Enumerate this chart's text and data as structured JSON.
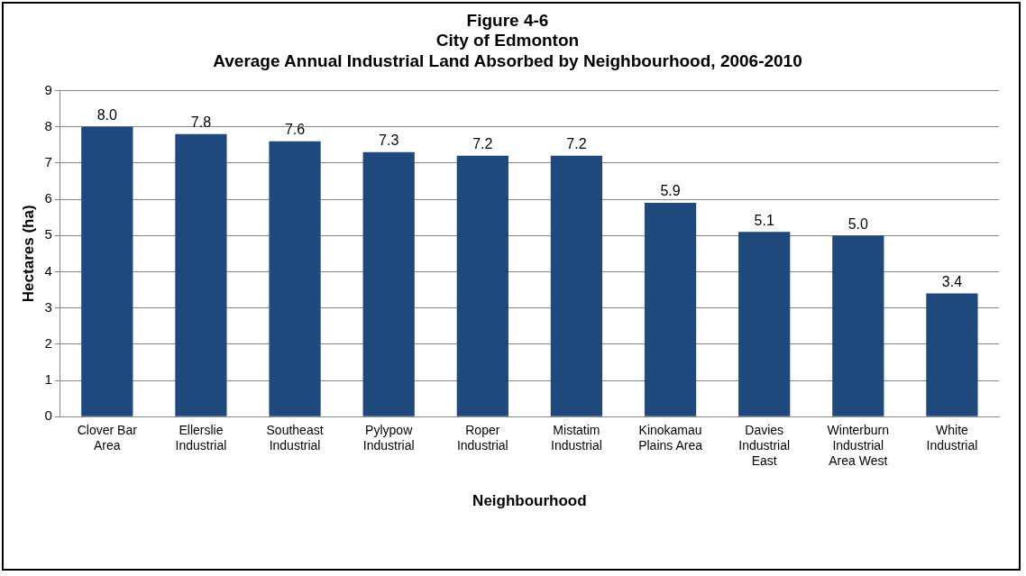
{
  "chart_data": {
    "type": "bar",
    "title": "Figure 4-6\nCity of Edmonton\nAverage Annual Industrial Land Absorbed by Neighbourhood, 2006-2010",
    "xlabel": "Neighbourhood",
    "ylabel": "Hectares (ha)",
    "categories": [
      "Clover Bar Area",
      "Ellerslie Industrial",
      "Southeast Industrial",
      "Pylypow Industrial",
      "Roper Industrial",
      "Mistatim Industrial",
      "Kinokamau Plains Area",
      "Davies Industrial East",
      "Winterburn Industrial Area West",
      "White Industrial"
    ],
    "values": [
      8.0,
      7.8,
      7.6,
      7.3,
      7.2,
      7.2,
      5.9,
      5.1,
      5.0,
      3.4
    ],
    "value_labels": [
      "8.0",
      "7.8",
      "7.6",
      "7.3",
      "7.2",
      "7.2",
      "5.9",
      "5.1",
      "5.0",
      "3.4"
    ],
    "color": "#1f497d",
    "ylim": [
      0,
      9
    ],
    "yticks": [
      0,
      1,
      2,
      3,
      4,
      5,
      6,
      7,
      8,
      9
    ],
    "grid": "y",
    "legend": false
  }
}
